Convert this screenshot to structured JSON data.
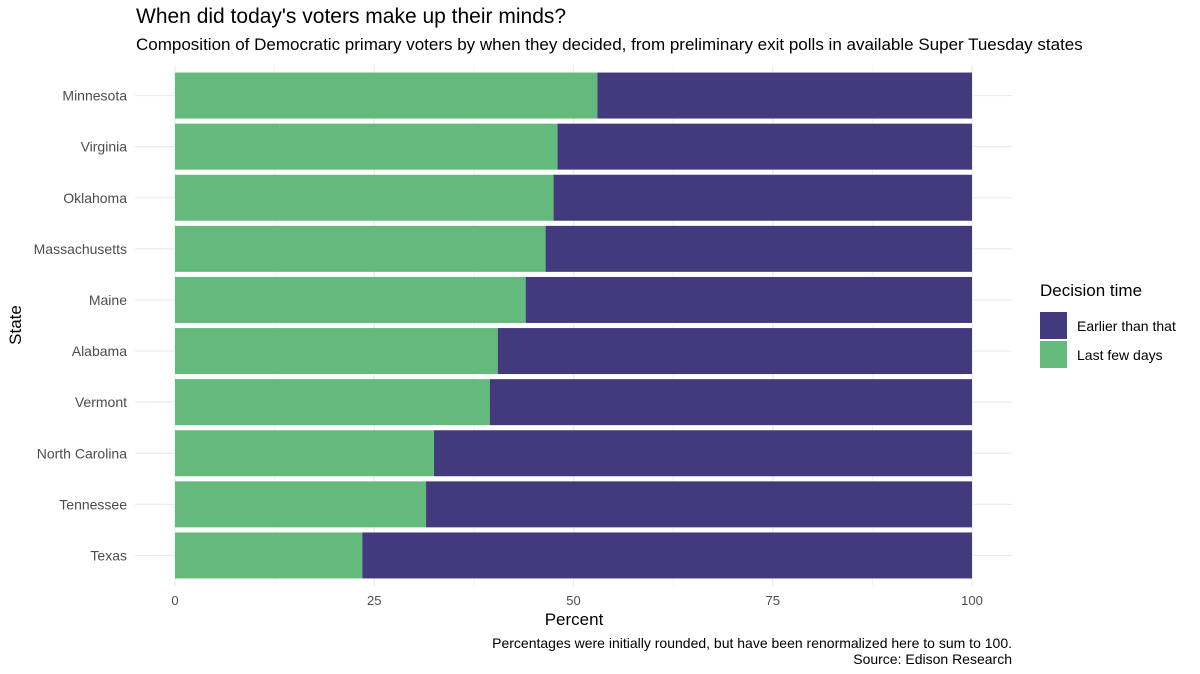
{
  "chart_data": {
    "type": "bar",
    "orientation": "horizontal",
    "stacked": true,
    "title": "When did today's voters make up their minds?",
    "subtitle": "Composition of Democratic primary voters by when they decided, from preliminary exit polls in available Super Tuesday states",
    "xlabel": "Percent",
    "ylabel": "State",
    "xlim": [
      0,
      100
    ],
    "xticks": [
      0,
      25,
      50,
      75,
      100
    ],
    "grid": true,
    "categories": [
      "Minnesota",
      "Virginia",
      "Oklahoma",
      "Massachusetts",
      "Maine",
      "Alabama",
      "Vermont",
      "North Carolina",
      "Tennessee",
      "Texas"
    ],
    "series": [
      {
        "name": "Last few days",
        "color": "#63BA7C",
        "values": [
          53,
          48,
          47.5,
          46.5,
          44,
          40.5,
          39.5,
          32.5,
          31.5,
          23.5
        ]
      },
      {
        "name": "Earlier than that",
        "color": "#433A7D",
        "values": [
          47,
          52,
          52.5,
          53.5,
          56,
          59.5,
          60.5,
          67.5,
          68.5,
          76.5
        ]
      }
    ],
    "legend": {
      "title": "Decision time",
      "placement": "right",
      "items": [
        {
          "label": "Earlier than that",
          "color": "#433A7D"
        },
        {
          "label": "Last few days",
          "color": "#63BA7C"
        }
      ]
    },
    "caption": [
      "Percentages were initially rounded, but have been renormalized here to sum to 100.",
      "Source: Edison Research"
    ]
  }
}
